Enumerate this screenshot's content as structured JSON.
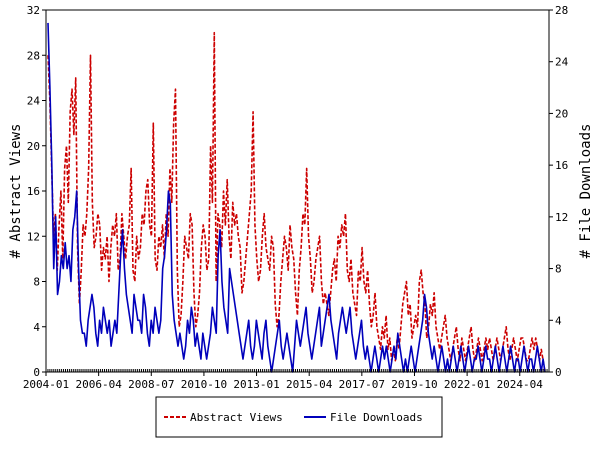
{
  "chart_data": {
    "type": "line",
    "title": "",
    "xlabel": "",
    "ylabel_left": "# Abstract Views",
    "ylabel_right": "# File Downloads",
    "x_ticks": [
      "2004-01",
      "2006-04",
      "2008-07",
      "2010-10",
      "2013-01",
      "2015-04",
      "2017-07",
      "2019-10",
      "2022-01",
      "2024-04"
    ],
    "x_start": "2004-01",
    "x_end": "2025-07",
    "y_left_ticks": [
      0,
      4,
      8,
      12,
      16,
      20,
      24,
      28,
      32
    ],
    "y_left_range": [
      0,
      32
    ],
    "y_right_ticks": [
      0,
      4,
      8,
      12,
      16,
      20,
      24,
      28
    ],
    "y_right_range": [
      0,
      28
    ],
    "legend_position": "bottom",
    "series": [
      {
        "name": "Abstract Views",
        "axis": "left",
        "color": "#cc0000",
        "style": "dashed",
        "values": [
          28,
          24,
          18,
          12,
          14,
          9,
          13,
          16,
          10,
          18,
          20,
          15,
          23,
          25,
          21,
          26,
          11,
          6,
          9,
          13,
          12,
          14,
          18,
          28,
          15,
          11,
          12,
          14,
          13,
          9,
          11,
          10,
          12,
          8,
          11,
          13,
          12,
          14,
          9,
          10,
          14,
          12,
          10,
          12,
          13,
          18,
          9,
          8,
          12,
          10,
          11,
          14,
          13,
          16,
          17,
          13,
          12,
          22,
          10,
          9,
          12,
          11,
          13,
          10,
          14,
          12,
          18,
          15,
          22,
          25,
          9,
          4,
          5,
          8,
          12,
          11,
          10,
          14,
          13,
          7,
          4,
          5,
          7,
          11,
          13,
          12,
          9,
          10,
          20,
          15,
          30,
          8,
          14,
          13,
          11,
          16,
          13,
          17,
          12,
          10,
          15,
          13,
          14,
          12,
          11,
          7,
          8,
          10,
          12,
          14,
          16,
          23,
          13,
          10,
          8,
          9,
          12,
          14,
          11,
          10,
          9,
          12,
          11,
          6,
          4,
          5,
          8,
          10,
          12,
          11,
          9,
          13,
          11,
          10,
          7,
          5,
          9,
          11,
          14,
          13,
          18,
          12,
          10,
          7,
          8,
          10,
          11,
          12,
          8,
          6,
          7,
          6,
          5,
          7,
          9,
          10,
          8,
          12,
          11,
          13,
          12,
          14,
          9,
          8,
          10,
          7,
          6,
          5,
          9,
          8,
          11,
          8,
          7,
          9,
          6,
          4,
          5,
          7,
          4,
          3,
          2,
          4,
          3,
          5,
          2,
          3,
          1,
          2,
          1,
          3,
          2,
          4,
          6,
          7,
          8,
          5,
          6,
          3,
          4,
          5,
          4,
          8,
          9,
          7,
          6,
          3,
          4,
          6,
          5,
          7,
          4,
          3,
          2,
          3,
          4,
          5,
          3,
          2,
          1,
          2,
          3,
          4,
          2,
          1,
          3,
          2,
          1,
          2,
          3,
          4,
          2,
          1,
          2,
          3,
          2,
          1,
          2,
          3,
          2,
          3,
          2,
          1,
          2,
          3,
          2,
          1,
          2,
          3,
          4,
          2,
          1,
          2,
          3,
          2,
          1,
          2,
          3,
          3,
          2,
          1,
          1,
          2,
          3,
          2,
          3,
          2,
          1,
          2,
          1,
          0
        ]
      },
      {
        "name": "File Downloads",
        "axis": "right",
        "color": "#0000bb",
        "style": "solid",
        "values": [
          27,
          22,
          16,
          8,
          12,
          6,
          7,
          9,
          8,
          10,
          8,
          9,
          7,
          11,
          12,
          14,
          8,
          4,
          3,
          3,
          2,
          4,
          5,
          6,
          5,
          3,
          2,
          4,
          3,
          5,
          4,
          3,
          4,
          2,
          3,
          4,
          3,
          6,
          9,
          11,
          8,
          6,
          5,
          4,
          3,
          6,
          5,
          4,
          4,
          3,
          6,
          5,
          3,
          2,
          4,
          3,
          5,
          4,
          3,
          4,
          8,
          9,
          11,
          14,
          13,
          6,
          4,
          3,
          2,
          3,
          2,
          1,
          2,
          4,
          3,
          5,
          4,
          2,
          3,
          2,
          1,
          3,
          2,
          1,
          2,
          3,
          5,
          4,
          3,
          9,
          11,
          7,
          5,
          4,
          3,
          8,
          7,
          6,
          5,
          4,
          3,
          2,
          1,
          2,
          3,
          4,
          2,
          1,
          2,
          4,
          3,
          2,
          1,
          3,
          4,
          2,
          1,
          0,
          1,
          2,
          3,
          4,
          2,
          1,
          2,
          3,
          2,
          1,
          0,
          2,
          4,
          3,
          2,
          3,
          4,
          5,
          3,
          2,
          1,
          2,
          3,
          4,
          5,
          2,
          3,
          4,
          5,
          6,
          4,
          3,
          2,
          1,
          3,
          4,
          5,
          4,
          3,
          4,
          5,
          3,
          2,
          1,
          2,
          3,
          4,
          2,
          1,
          2,
          1,
          0,
          1,
          2,
          1,
          0,
          1,
          2,
          1,
          2,
          1,
          0,
          1,
          2,
          1,
          3,
          2,
          1,
          0,
          1,
          0,
          1,
          2,
          1,
          0,
          1,
          2,
          3,
          4,
          6,
          5,
          3,
          2,
          1,
          2,
          1,
          0,
          1,
          2,
          1,
          0,
          1,
          0,
          1,
          2,
          1,
          0,
          1,
          2,
          1,
          0,
          1,
          2,
          1,
          0,
          1,
          1,
          2,
          1,
          0,
          1,
          2,
          1,
          1,
          0,
          1,
          2,
          1,
          0,
          1,
          2,
          1,
          0,
          1,
          2,
          1,
          0,
          1,
          1,
          0,
          1,
          2,
          1,
          0,
          1,
          1,
          0,
          1,
          2,
          1,
          0,
          1,
          0
        ]
      }
    ]
  }
}
